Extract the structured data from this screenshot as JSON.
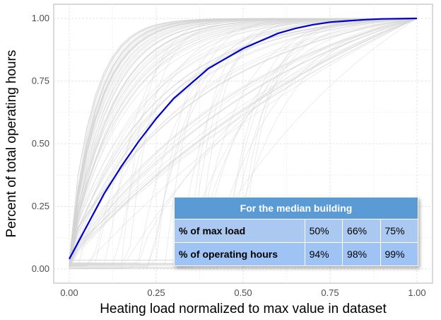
{
  "chart_data": {
    "type": "line",
    "title": "",
    "xlabel": "Heating load normalized to max value in dataset",
    "ylabel": "Percent of total operating hours",
    "xlim": [
      0,
      1
    ],
    "ylim": [
      0,
      1
    ],
    "xticks": [
      "0.00",
      "0.25",
      "0.50",
      "0.75",
      "1.00"
    ],
    "yticks": [
      "0.00",
      "0.25",
      "0.50",
      "0.75",
      "1.00"
    ],
    "grid": true,
    "background_series_color": "#d3d3d3",
    "highlight_color": "#0000cc",
    "series": [
      {
        "x": [
          0.0,
          0.05,
          0.1,
          0.15,
          0.2,
          0.25,
          0.3,
          0.35,
          0.4,
          0.45,
          0.5,
          0.55,
          0.6,
          0.65,
          0.7,
          0.75,
          0.8,
          0.85,
          0.9,
          0.95,
          1.0
        ],
        "y": [
          0.04,
          0.17,
          0.3,
          0.41,
          0.51,
          0.6,
          0.68,
          0.74,
          0.8,
          0.84,
          0.88,
          0.91,
          0.94,
          0.96,
          0.975,
          0.985,
          0.99,
          0.995,
          0.998,
          0.999,
          1.0
        ]
      }
    ]
  },
  "inset_table": {
    "title": "For the median building",
    "rows": [
      {
        "label": "% of max load",
        "values": [
          "50%",
          "66%",
          "75%"
        ]
      },
      {
        "label": "% of operating hours",
        "values": [
          "94%",
          "98%",
          "99%"
        ]
      }
    ]
  }
}
